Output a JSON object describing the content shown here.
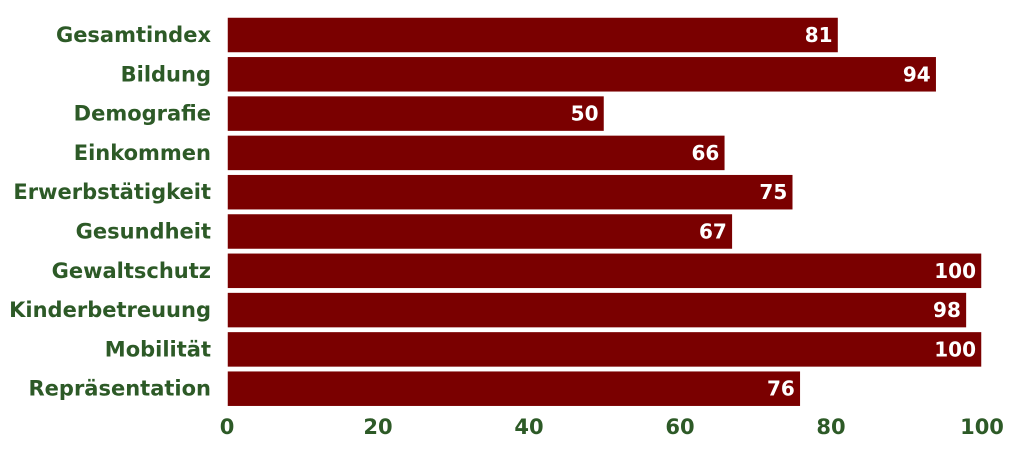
{
  "chart_data": {
    "type": "bar",
    "orientation": "horizontal",
    "categories": [
      "Gesamtindex",
      "Bildung",
      "Demografie",
      "Einkommen",
      "Erwerbstätigkeit",
      "Gesundheit",
      "Gewaltschutz",
      "Kinderbetreuung",
      "Mobilität",
      "Repräsentation"
    ],
    "values": [
      81,
      94,
      50,
      66,
      75,
      67,
      100,
      98,
      100,
      76
    ],
    "value_labels": [
      "81",
      "94",
      "50",
      "66",
      "75",
      "67",
      "100",
      "98",
      "100",
      "76"
    ],
    "xlim": [
      0,
      100
    ],
    "xticks": [
      0,
      20,
      40,
      60,
      80,
      100
    ],
    "xtick_labels": [
      "0",
      "20",
      "40",
      "60",
      "80",
      "100"
    ],
    "grid": false,
    "colors": {
      "bar": "#7a0000",
      "label": "#2d5a27",
      "value_text": "#ffffff"
    }
  }
}
